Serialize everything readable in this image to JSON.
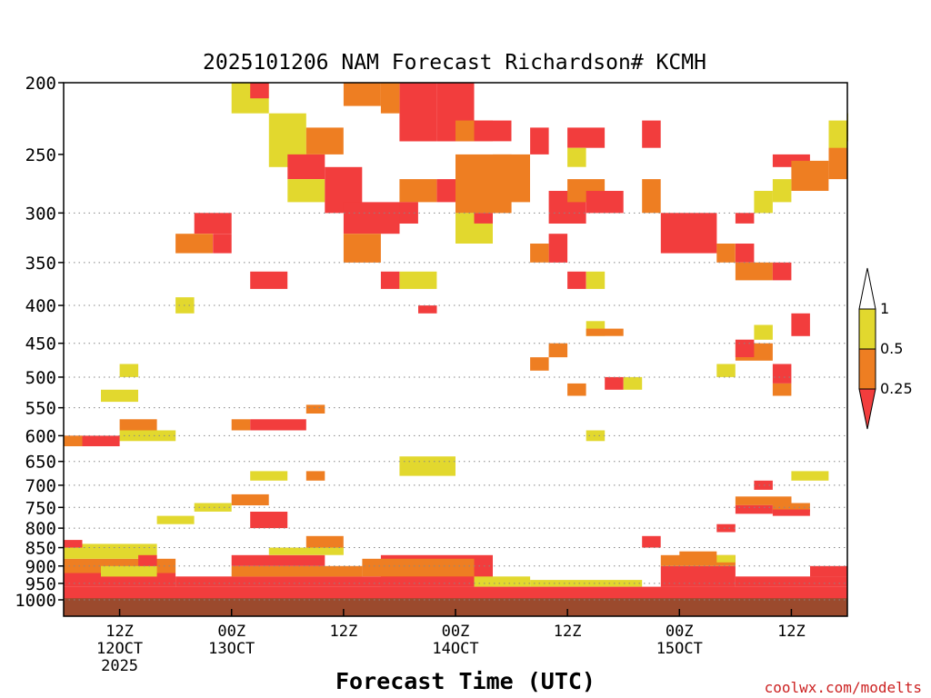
{
  "chart_data": {
    "type": "heatmap",
    "title": "2025101206 NAM Forecast Richardson# KCMH",
    "xlabel": "Forecast Time (UTC)",
    "ylabel": "",
    "credit": "coolwx.com/modelts",
    "y_axis": {
      "scale": "log-pressure",
      "unit": "hPa",
      "range": [
        1000,
        200
      ],
      "ticks": [
        "200",
        "250",
        "300",
        "350",
        "400",
        "450",
        "500",
        "550",
        "600",
        "650",
        "700",
        "750",
        "800",
        "850",
        "900",
        "950",
        "1000"
      ],
      "tick_values": [
        200,
        250,
        300,
        350,
        400,
        450,
        500,
        550,
        600,
        650,
        700,
        750,
        800,
        850,
        900,
        950,
        1000
      ],
      "dotted_grid_at": [
        300,
        350,
        400,
        450,
        500,
        550,
        600,
        650,
        700,
        750,
        800,
        850,
        900,
        950,
        1000
      ]
    },
    "x_axis": {
      "unit": "forecast hour",
      "range": [
        0,
        84
      ],
      "ticks": [
        {
          "hour": 6,
          "lines": [
            "12Z",
            "12OCT",
            "2025"
          ]
        },
        {
          "hour": 18,
          "lines": [
            "00Z",
            "13OCT"
          ]
        },
        {
          "hour": 30,
          "lines": [
            "12Z"
          ]
        },
        {
          "hour": 42,
          "lines": [
            "00Z",
            "14OCT"
          ]
        },
        {
          "hour": 54,
          "lines": [
            "12Z"
          ]
        },
        {
          "hour": 66,
          "lines": [
            "00Z",
            "15OCT"
          ]
        },
        {
          "hour": 78,
          "lines": [
            "12Z"
          ]
        }
      ]
    },
    "legend": {
      "position": "right",
      "labels": [
        "1",
        "0.5",
        "0.25"
      ],
      "bins": [
        {
          "name": "above 1",
          "color": "#ffffff"
        },
        {
          "name": "0.5 to 1",
          "color": "#e2d82e"
        },
        {
          "name": "0.25 to 0.5",
          "color": "#ee7e22"
        },
        {
          "name": "below 0.25",
          "color": "#f23d3d"
        }
      ]
    },
    "surface_color": "#9b4a2d",
    "surface_pressure": 1010,
    "cell_hours": 2,
    "cell_hpa": 10,
    "classes": {
      "Y": "#e2d82e",
      "O": "#ee7e22",
      "R": "#f23d3d"
    },
    "cells": [
      {
        "c": "R",
        "t0": 0,
        "t1": 84,
        "p0": 960,
        "p1": 1000
      },
      {
        "c": "R",
        "t0": 0,
        "t1": 12,
        "p0": 920,
        "p1": 960
      },
      {
        "c": "O",
        "t0": 0,
        "t1": 12,
        "p0": 880,
        "p1": 920
      },
      {
        "c": "Y",
        "t0": 0,
        "t1": 10,
        "p0": 840,
        "p1": 880
      },
      {
        "c": "R",
        "t0": 0,
        "t1": 2,
        "p0": 830,
        "p1": 850
      },
      {
        "c": "R",
        "t0": 12,
        "t1": 40,
        "p0": 930,
        "p1": 960
      },
      {
        "c": "O",
        "t0": 18,
        "t1": 32,
        "p0": 900,
        "p1": 930
      },
      {
        "c": "R",
        "t0": 18,
        "t1": 28,
        "p0": 870,
        "p1": 900
      },
      {
        "c": "Y",
        "t0": 22,
        "t1": 30,
        "p0": 850,
        "p1": 870
      },
      {
        "c": "O",
        "t0": 26,
        "t1": 30,
        "p0": 820,
        "p1": 850
      },
      {
        "c": "R",
        "t0": 34,
        "t1": 46,
        "p0": 870,
        "p1": 960
      },
      {
        "c": "O",
        "t0": 32,
        "t1": 44,
        "p0": 880,
        "p1": 930
      },
      {
        "c": "Y",
        "t0": 44,
        "t1": 50,
        "p0": 930,
        "p1": 960
      },
      {
        "c": "Y",
        "t0": 50,
        "t1": 62,
        "p0": 940,
        "p1": 960
      },
      {
        "c": "R",
        "t0": 64,
        "t1": 72,
        "p0": 900,
        "p1": 960
      },
      {
        "c": "O",
        "t0": 64,
        "t1": 72,
        "p0": 870,
        "p1": 900
      },
      {
        "c": "R",
        "t0": 72,
        "t1": 84,
        "p0": 930,
        "p1": 960
      },
      {
        "c": "R",
        "t0": 80,
        "t1": 84,
        "p0": 900,
        "p1": 930
      },
      {
        "c": "O",
        "t0": 18,
        "t1": 22,
        "p0": 720,
        "p1": 745
      },
      {
        "c": "Y",
        "t0": 14,
        "t1": 18,
        "p0": 740,
        "p1": 760
      },
      {
        "c": "R",
        "t0": 20,
        "t1": 24,
        "p0": 760,
        "p1": 800
      },
      {
        "c": "Y",
        "t0": 10,
        "t1": 14,
        "p0": 770,
        "p1": 790
      },
      {
        "c": "O",
        "t0": 6,
        "t1": 10,
        "p0": 570,
        "p1": 590
      },
      {
        "c": "Y",
        "t0": 6,
        "t1": 12,
        "p0": 590,
        "p1": 610
      },
      {
        "c": "R",
        "t0": 0,
        "t1": 6,
        "p0": 600,
        "p1": 620
      },
      {
        "c": "Y",
        "t0": 4,
        "t1": 8,
        "p0": 520,
        "p1": 540
      },
      {
        "c": "Y",
        "t0": 6,
        "t1": 8,
        "p0": 480,
        "p1": 500
      },
      {
        "c": "O",
        "t0": 18,
        "t1": 20,
        "p0": 570,
        "p1": 590
      },
      {
        "c": "R",
        "t0": 20,
        "t1": 26,
        "p0": 570,
        "p1": 590
      },
      {
        "c": "O",
        "t0": 26,
        "t1": 28,
        "p0": 545,
        "p1": 560
      },
      {
        "c": "Y",
        "t0": 20,
        "t1": 24,
        "p0": 670,
        "p1": 690
      },
      {
        "c": "Y",
        "t0": 36,
        "t1": 42,
        "p0": 640,
        "p1": 680
      },
      {
        "c": "O",
        "t0": 26,
        "t1": 28,
        "p0": 670,
        "p1": 690
      },
      {
        "c": "Y",
        "t0": 12,
        "t1": 14,
        "p0": 390,
        "p1": 410
      },
      {
        "c": "R",
        "t0": 20,
        "t1": 24,
        "p0": 360,
        "p1": 380
      },
      {
        "c": "O",
        "t0": 12,
        "t1": 16,
        "p0": 320,
        "p1": 340
      },
      {
        "c": "R",
        "t0": 14,
        "t1": 18,
        "p0": 300,
        "p1": 320
      },
      {
        "c": "R",
        "t0": 16,
        "t1": 18,
        "p0": 320,
        "p1": 340
      },
      {
        "c": "Y",
        "t0": 18,
        "t1": 22,
        "p0": 200,
        "p1": 220
      },
      {
        "c": "R",
        "t0": 20,
        "t1": 22,
        "p0": 200,
        "p1": 210
      },
      {
        "c": "Y",
        "t0": 22,
        "t1": 26,
        "p0": 220,
        "p1": 260
      },
      {
        "c": "R",
        "t0": 24,
        "t1": 28,
        "p0": 250,
        "p1": 270
      },
      {
        "c": "Y",
        "t0": 24,
        "t1": 28,
        "p0": 270,
        "p1": 290
      },
      {
        "c": "O",
        "t0": 26,
        "t1": 30,
        "p0": 230,
        "p1": 250
      },
      {
        "c": "R",
        "t0": 28,
        "t1": 32,
        "p0": 260,
        "p1": 300
      },
      {
        "c": "R",
        "t0": 30,
        "t1": 36,
        "p0": 290,
        "p1": 320
      },
      {
        "c": "O",
        "t0": 30,
        "t1": 34,
        "p0": 320,
        "p1": 350
      },
      {
        "c": "O",
        "t0": 30,
        "t1": 34,
        "p0": 200,
        "p1": 215
      },
      {
        "c": "R",
        "t0": 36,
        "t1": 40,
        "p0": 200,
        "p1": 240
      },
      {
        "c": "O",
        "t0": 34,
        "t1": 36,
        "p0": 200,
        "p1": 220
      },
      {
        "c": "Y",
        "t0": 40,
        "t1": 42,
        "p0": 200,
        "p1": 220
      },
      {
        "c": "R",
        "t0": 40,
        "t1": 44,
        "p0": 200,
        "p1": 240
      },
      {
        "c": "O",
        "t0": 42,
        "t1": 46,
        "p0": 225,
        "p1": 240
      },
      {
        "c": "R",
        "t0": 44,
        "t1": 48,
        "p0": 225,
        "p1": 240
      },
      {
        "c": "O",
        "t0": 42,
        "t1": 48,
        "p0": 250,
        "p1": 300
      },
      {
        "c": "R",
        "t0": 40,
        "t1": 42,
        "p0": 270,
        "p1": 290
      },
      {
        "c": "Y",
        "t0": 42,
        "t1": 46,
        "p0": 300,
        "p1": 330
      },
      {
        "c": "R",
        "t0": 44,
        "t1": 46,
        "p0": 300,
        "p1": 310
      },
      {
        "c": "O",
        "t0": 46,
        "t1": 50,
        "p0": 250,
        "p1": 290
      },
      {
        "c": "O",
        "t0": 36,
        "t1": 40,
        "p0": 270,
        "p1": 290
      },
      {
        "c": "R",
        "t0": 36,
        "t1": 38,
        "p0": 290,
        "p1": 310
      },
      {
        "c": "R",
        "t0": 34,
        "t1": 36,
        "p0": 360,
        "p1": 380
      },
      {
        "c": "Y",
        "t0": 36,
        "t1": 40,
        "p0": 360,
        "p1": 380
      },
      {
        "c": "R",
        "t0": 38,
        "t1": 40,
        "p0": 400,
        "p1": 410
      },
      {
        "c": "R",
        "t0": 50,
        "t1": 52,
        "p0": 230,
        "p1": 250
      },
      {
        "c": "R",
        "t0": 52,
        "t1": 56,
        "p0": 280,
        "p1": 310
      },
      {
        "c": "O",
        "t0": 54,
        "t1": 58,
        "p0": 270,
        "p1": 290
      },
      {
        "c": "R",
        "t0": 56,
        "t1": 60,
        "p0": 280,
        "p1": 300
      },
      {
        "c": "R",
        "t0": 52,
        "t1": 54,
        "p0": 320,
        "p1": 350
      },
      {
        "c": "O",
        "t0": 50,
        "t1": 52,
        "p0": 330,
        "p1": 350
      },
      {
        "c": "R",
        "t0": 54,
        "t1": 56,
        "p0": 360,
        "p1": 380
      },
      {
        "c": "Y",
        "t0": 56,
        "t1": 58,
        "p0": 360,
        "p1": 380
      },
      {
        "c": "R",
        "t0": 54,
        "t1": 58,
        "p0": 230,
        "p1": 245
      },
      {
        "c": "Y",
        "t0": 54,
        "t1": 56,
        "p0": 245,
        "p1": 260
      },
      {
        "c": "R",
        "t0": 62,
        "t1": 64,
        "p0": 225,
        "p1": 245
      },
      {
        "c": "O",
        "t0": 62,
        "t1": 64,
        "p0": 270,
        "p1": 300
      },
      {
        "c": "R",
        "t0": 64,
        "t1": 70,
        "p0": 300,
        "p1": 340
      },
      {
        "c": "O",
        "t0": 70,
        "t1": 72,
        "p0": 330,
        "p1": 350
      },
      {
        "c": "R",
        "t0": 72,
        "t1": 74,
        "p0": 330,
        "p1": 350
      },
      {
        "c": "O",
        "t0": 72,
        "t1": 76,
        "p0": 350,
        "p1": 370
      },
      {
        "c": "R",
        "t0": 76,
        "t1": 78,
        "p0": 350,
        "p1": 370
      },
      {
        "c": "R",
        "t0": 72,
        "t1": 74,
        "p0": 300,
        "p1": 310
      },
      {
        "c": "Y",
        "t0": 74,
        "t1": 76,
        "p0": 280,
        "p1": 300
      },
      {
        "c": "R",
        "t0": 76,
        "t1": 80,
        "p0": 250,
        "p1": 260
      },
      {
        "c": "O",
        "t0": 78,
        "t1": 82,
        "p0": 255,
        "p1": 280
      },
      {
        "c": "O",
        "t0": 82,
        "t1": 84,
        "p0": 240,
        "p1": 270
      },
      {
        "c": "Y",
        "t0": 84,
        "t1": 84,
        "p0": 220,
        "p1": 240
      },
      {
        "c": "Y",
        "t0": 82,
        "t1": 84,
        "p0": 225,
        "p1": 245
      },
      {
        "c": "Y",
        "t0": 76,
        "t1": 78,
        "p0": 270,
        "p1": 290
      },
      {
        "c": "R",
        "t0": 78,
        "t1": 80,
        "p0": 410,
        "p1": 440
      },
      {
        "c": "O",
        "t0": 72,
        "t1": 76,
        "p0": 450,
        "p1": 475
      },
      {
        "c": "R",
        "t0": 72,
        "t1": 74,
        "p0": 445,
        "p1": 470
      },
      {
        "c": "Y",
        "t0": 74,
        "t1": 76,
        "p0": 425,
        "p1": 445
      },
      {
        "c": "R",
        "t0": 76,
        "t1": 78,
        "p0": 480,
        "p1": 510
      },
      {
        "c": "O",
        "t0": 76,
        "t1": 78,
        "p0": 510,
        "p1": 530
      },
      {
        "c": "Y",
        "t0": 70,
        "t1": 72,
        "p0": 480,
        "p1": 500
      },
      {
        "c": "O",
        "t0": 52,
        "t1": 54,
        "p0": 450,
        "p1": 470
      },
      {
        "c": "O",
        "t0": 50,
        "t1": 52,
        "p0": 470,
        "p1": 490
      },
      {
        "c": "Y",
        "t0": 56,
        "t1": 58,
        "p0": 420,
        "p1": 440
      },
      {
        "c": "O",
        "t0": 56,
        "t1": 60,
        "p0": 430,
        "p1": 440
      },
      {
        "c": "O",
        "t0": 54,
        "t1": 56,
        "p0": 510,
        "p1": 530
      },
      {
        "c": "R",
        "t0": 58,
        "t1": 60,
        "p0": 500,
        "p1": 520
      },
      {
        "c": "Y",
        "t0": 60,
        "t1": 62,
        "p0": 500,
        "p1": 520
      },
      {
        "c": "O",
        "t0": 72,
        "t1": 78,
        "p0": 725,
        "p1": 745
      },
      {
        "c": "R",
        "t0": 72,
        "t1": 76,
        "p0": 745,
        "p1": 765
      },
      {
        "c": "O",
        "t0": 76,
        "t1": 80,
        "p0": 740,
        "p1": 760
      },
      {
        "c": "R",
        "t0": 76,
        "t1": 80,
        "p0": 755,
        "p1": 770
      },
      {
        "c": "R",
        "t0": 74,
        "t1": 76,
        "p0": 690,
        "p1": 710
      },
      {
        "c": "Y",
        "t0": 78,
        "t1": 82,
        "p0": 670,
        "p1": 690
      },
      {
        "c": "Y",
        "t0": 56,
        "t1": 58,
        "p0": 590,
        "p1": 610
      },
      {
        "c": "R",
        "t0": 62,
        "t1": 64,
        "p0": 820,
        "p1": 850
      },
      {
        "c": "R",
        "t0": 70,
        "t1": 72,
        "p0": 790,
        "p1": 810
      },
      {
        "c": "O",
        "t0": 66,
        "t1": 70,
        "p0": 860,
        "p1": 880
      },
      {
        "c": "Y",
        "t0": 70,
        "t1": 72,
        "p0": 870,
        "p1": 890
      },
      {
        "c": "R",
        "t0": 4,
        "t1": 8,
        "p0": 940,
        "p1": 960
      },
      {
        "c": "Y",
        "t0": 4,
        "t1": 10,
        "p0": 900,
        "p1": 930
      },
      {
        "c": "R",
        "t0": 8,
        "t1": 10,
        "p0": 870,
        "p1": 900
      },
      {
        "c": "O",
        "t0": 0,
        "t1": 2,
        "p0": 600,
        "p1": 620
      }
    ]
  }
}
